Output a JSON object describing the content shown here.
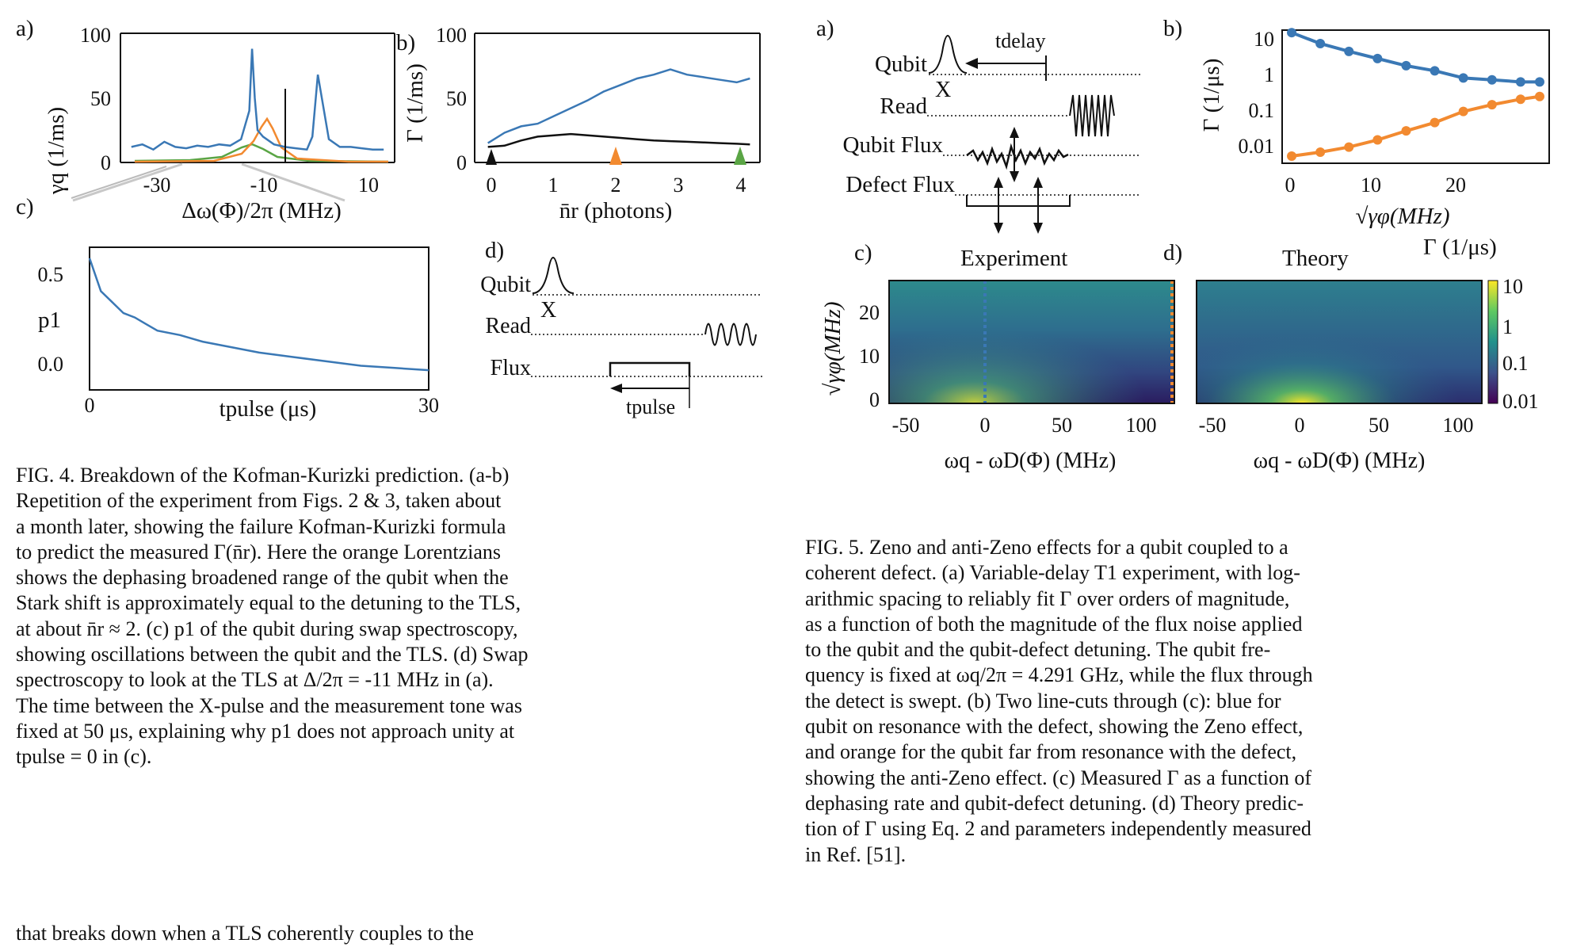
{
  "fig4": {
    "panel_a": "a)",
    "panel_b": "b)",
    "panel_c": "c)",
    "panel_d": "d)",
    "a_ylabel": "γq (1/ms)",
    "a_xlabel": "Δω(Φ)/2π (MHz)",
    "a_yticks": [
      "100",
      "50",
      "0"
    ],
    "a_xticks": [
      "-30",
      "-10",
      "10"
    ],
    "b_ylabel": "Γ (1/ms)",
    "b_xlabel": "n̄r (photons)",
    "b_yticks": [
      "100",
      "50",
      "0"
    ],
    "b_xticks": [
      "0",
      "1",
      "2",
      "3",
      "4"
    ],
    "c_ylabel": "p1",
    "c_xlabel": "tpulse (μs)",
    "c_yticks": [
      "0.5",
      "0.0"
    ],
    "c_xticks": [
      "0",
      "30"
    ],
    "d_labels": [
      "Qubit",
      "Read",
      "Flux"
    ],
    "d_x": "X",
    "d_tpulse": "tpulse",
    "caption_lines": [
      "FIG. 4. Breakdown of the Kofman-Kurizki prediction. (a-b)",
      "Repetition of the experiment from Figs. 2 & 3, taken about",
      "a month later, showing the failure Kofman-Kurizki formula",
      "to predict the measured Γ(n̄r). Here the orange Lorentzians",
      "shows the dephasing broadened range of the qubit when the",
      "Stark shift is approximately equal to the detuning to the TLS,",
      "at about n̄r ≈ 2. (c) p1 of the qubit during swap spectroscopy,",
      "showing oscillations between the qubit and the TLS. (d) Swap",
      "spectroscopy to look at the TLS at Δ/2π = -11 MHz in (a).",
      "The time between the X-pulse and the measurement tone was",
      "fixed at 50 μs, explaining why p1 does not approach unity at",
      "tpulse = 0 in (c)."
    ],
    "body_text": "that breaks down when a TLS coherently couples to the"
  },
  "fig5": {
    "panel_a": "a)",
    "panel_b": "b)",
    "panel_c": "c)",
    "panel_d": "d)",
    "a_labels": [
      "Qubit",
      "Read",
      "Qubit Flux",
      "Defect Flux"
    ],
    "a_x": "X",
    "a_tdelay": "tdelay",
    "b_ylabel": "Γ (1/μs)",
    "b_xlabel": "√γφ(MHz)",
    "b_yticks": [
      "10",
      "1",
      "0.1",
      "0.01"
    ],
    "b_xticks": [
      "0",
      "10",
      "20"
    ],
    "c_title": "Experiment",
    "d_title": "Theory",
    "cd_ylabel": "√γφ(MHz)",
    "cd_xlabel": "ωq - ωD(Φ) (MHz)",
    "cd_yticks": [
      "20",
      "10",
      "0"
    ],
    "cd_xticks": [
      "-50",
      "0",
      "50",
      "100"
    ],
    "cbar_label": "Γ (1/μs)",
    "cbar_ticks": [
      "10",
      "1",
      "0.1",
      "0.01"
    ],
    "caption_lines": [
      "FIG. 5.   Zeno and anti-Zeno effects for a qubit coupled to a",
      "coherent defect. (a) Variable-delay T1 experiment, with log-",
      "arithmic spacing to reliably fit Γ over orders of magnitude,",
      "as a function of both the magnitude of the flux noise applied",
      "to the qubit and the qubit-defect detuning.  The qubit fre-",
      "quency is fixed at ωq/2π = 4.291 GHz, while the flux through",
      "the detect is swept.  (b) Two line-cuts through (c): blue for",
      "qubit on resonance with the defect, showing the Zeno effect,",
      "and orange for the qubit far from resonance with the defect,",
      "showing the anti-Zeno effect. (c) Measured Γ as a function of",
      "dephasing rate and qubit-defect detuning. (d) Theory predic-",
      "tion of Γ using Eq. 2 and parameters independently measured",
      "in Ref. [51]."
    ]
  },
  "colors": {
    "blue": "#3a78b5",
    "orange": "#f28a30",
    "green": "#5aa545"
  },
  "chart_data": [
    {
      "type": "line",
      "xlabel": "Δω(Φ)/2π (MHz)",
      "ylabel": "γq (1/ms)",
      "xlim": [
        -35,
        15
      ],
      "ylim": [
        0,
        100
      ],
      "x": [
        -33,
        -31,
        -29,
        -27,
        -25,
        -23,
        -21,
        -19,
        -17,
        -15,
        -13,
        -11.5,
        -11,
        -10.5,
        -10,
        -9,
        -7,
        -5,
        -3,
        -1,
        0,
        1,
        3,
        5,
        7,
        9,
        11,
        13
      ],
      "series": [
        {
          "values": [
            12,
            14,
            10,
            16,
            12,
            11,
            13,
            12,
            14,
            13,
            18,
            40,
            88,
            50,
            25,
            20,
            14,
            12,
            11,
            10,
            20,
            68,
            18,
            12,
            12,
            11,
            10,
            10
          ]
        }
      ]
    },
    {
      "type": "line",
      "xlabel": "n̄r (photons)",
      "ylabel": "Γ (1/ms)",
      "xlim": [
        -0.2,
        4.1
      ],
      "ylim": [
        0,
        100
      ],
      "x": [
        0,
        0.25,
        0.5,
        0.75,
        1,
        1.25,
        1.5,
        1.75,
        2,
        2.25,
        2.5,
        2.75,
        3,
        3.25,
        3.5,
        3.75,
        3.95
      ],
      "series": [
        {
          "values": [
            15,
            23,
            28,
            30,
            36,
            42,
            48,
            55,
            60,
            65,
            68,
            72,
            68,
            66,
            64,
            62,
            65
          ]
        },
        {
          "values": [
            12,
            13,
            17,
            20,
            21,
            22,
            21,
            20,
            19,
            18,
            17,
            16.5,
            16,
            15.5,
            15,
            14.5,
            14
          ]
        }
      ]
    },
    {
      "type": "line",
      "xlabel": "tpulse (μs)",
      "ylabel": "p1",
      "xlim": [
        0,
        30
      ],
      "ylim": [
        -0.05,
        0.6
      ],
      "x": [
        0,
        1,
        2,
        3,
        4,
        5,
        6,
        8,
        10,
        12,
        15,
        18,
        21,
        24,
        27,
        30
      ],
      "series": [
        {
          "values": [
            0.55,
            0.4,
            0.35,
            0.3,
            0.28,
            0.25,
            0.22,
            0.2,
            0.17,
            0.15,
            0.12,
            0.1,
            0.08,
            0.06,
            0.05,
            0.04
          ]
        }
      ]
    },
    {
      "type": "line",
      "xlabel": "√γφ(MHz)",
      "ylabel": "Γ (1/μs)",
      "xlim": [
        -1,
        27
      ],
      "ylim": [
        0.01,
        15
      ],
      "x": [
        0,
        3,
        6,
        9,
        12,
        15,
        18,
        21,
        24,
        26
      ],
      "series": [
        {
          "values": [
            13,
            7,
            4.5,
            3,
            2,
            1.5,
            1,
            0.9,
            0.8,
            0.8
          ]
        },
        {
          "values": [
            0.012,
            0.015,
            0.02,
            0.03,
            0.05,
            0.08,
            0.15,
            0.22,
            0.3,
            0.35
          ]
        }
      ]
    },
    {
      "type": "heatmap",
      "title": "Experiment",
      "xlabel": "ωq - ωD(Φ) (MHz)",
      "ylabel": "√γφ(MHz)",
      "xlim": [
        -65,
        110
      ],
      "ylim": [
        0,
        27
      ]
    },
    {
      "type": "heatmap",
      "title": "Theory",
      "xlabel": "ωq - ωD(Φ) (MHz)",
      "ylabel": "√γφ(MHz)",
      "xlim": [
        -65,
        110
      ],
      "ylim": [
        0,
        27
      ]
    }
  ]
}
